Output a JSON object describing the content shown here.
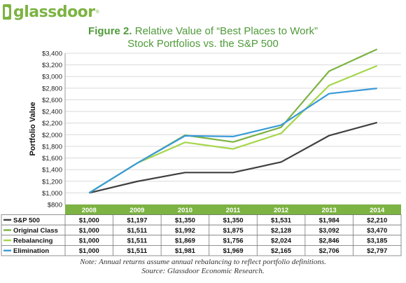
{
  "logo": {
    "text": "glassdoor",
    "reg": "®"
  },
  "title": {
    "prefix": "Figure 2.",
    "line1": "Relative Value of “Best Places to Work”",
    "line2": "Stock Portfolios vs. the S&P 500"
  },
  "notes": {
    "line1": "Note: Annual returns assume annual rebalancing to reflect portfolio definitions.",
    "line2": "Source: Glassdoor Economic Research."
  },
  "chart_data": {
    "type": "line",
    "ylabel": "Portfolio Value",
    "xlabel": "",
    "ylim": [
      800,
      3400
    ],
    "ytick_step": 200,
    "grid": true,
    "categories": [
      "2008",
      "2009",
      "2010",
      "2011",
      "2012",
      "2013",
      "2014"
    ],
    "series": [
      {
        "name": "S&P 500",
        "color": "#404040",
        "values": [
          1000,
          1197,
          1350,
          1350,
          1531,
          1984,
          2210
        ],
        "labels": [
          "$1,000",
          "$1,197",
          "$1,350",
          "$1,350",
          "$1,531",
          "$1,984",
          "$2,210"
        ]
      },
      {
        "name": "Original Class",
        "color": "#7cb342",
        "values": [
          1000,
          1511,
          1992,
          1875,
          2128,
          3092,
          3470
        ],
        "labels": [
          "$1,000",
          "$1,511",
          "$1,992",
          "$1,875",
          "$2,128",
          "$3,092",
          "$3,470"
        ]
      },
      {
        "name": "Rebalancing",
        "color": "#a5d64b",
        "values": [
          1000,
          1511,
          1869,
          1756,
          2024,
          2846,
          3185
        ],
        "labels": [
          "$1,000",
          "$1,511",
          "$1,869",
          "$1,756",
          "$2,024",
          "$2,846",
          "$3,185"
        ]
      },
      {
        "name": "Elimination",
        "color": "#3a9ad9",
        "values": [
          1000,
          1511,
          1981,
          1969,
          2165,
          2706,
          2797
        ],
        "labels": [
          "$1,000",
          "$1,511",
          "$1,981",
          "$1,969",
          "$2,165",
          "$2,706",
          "$2,797"
        ]
      }
    ]
  },
  "colors": {
    "header_bar": "#7cb342",
    "grid": "#d9d9d9",
    "title": "#4f9a3a"
  }
}
